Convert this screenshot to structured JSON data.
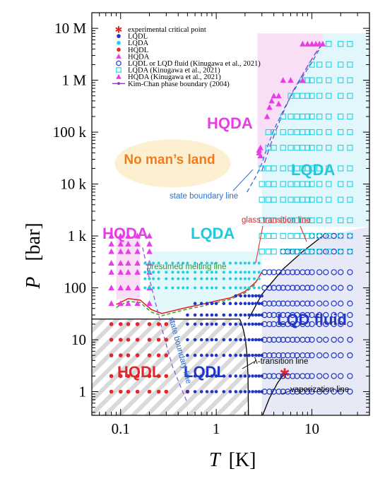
{
  "chart_data": {
    "type": "scatter",
    "xlabel": "T",
    "xunit": "[K]",
    "ylabel": "P",
    "yunit": "[bar]",
    "xscale": "log",
    "yscale": "log",
    "xlim": [
      0.05,
      40
    ],
    "ylim": [
      0.35,
      20000000
    ],
    "xticks": [
      0.1,
      1,
      10
    ],
    "xtick_labels": [
      "0.1",
      "1",
      "10"
    ],
    "yticks": [
      1,
      10,
      100,
      1000,
      10000,
      100000,
      1000000,
      10000000
    ],
    "ytick_labels": [
      "1",
      "10",
      "100",
      "1 k",
      "10 k",
      "100 k",
      "1 M",
      "10 M"
    ],
    "legend_position": "top-left",
    "legend": [
      {
        "label": "experimental critical point",
        "marker": "asterisk",
        "color": "#e3262a"
      },
      {
        "label": "LQDL",
        "marker": "dot",
        "color": "#1f35c8"
      },
      {
        "label": "LQDA",
        "marker": "dot",
        "color": "#22d0e0"
      },
      {
        "label": "HQDL",
        "marker": "dot",
        "color": "#e3262a"
      },
      {
        "label": "HQDA",
        "marker": "triangle",
        "color": "#e83de6"
      },
      {
        "label": "LQDL or LQD fluid (Kinugawa et al., 2021)",
        "marker": "open-circle",
        "color": "#1f35c8"
      },
      {
        "label": "LQDA (Kinugawa et al., 2021)",
        "marker": "open-square",
        "color": "#22d0e0"
      },
      {
        "label": "HQDA (Kinugawa et al., 2021)",
        "marker": "triangle",
        "color": "#e83de6"
      },
      {
        "label": "Kim-Chan phase boundary (2004)",
        "marker": "line-dot",
        "color": "#8b3db8"
      }
    ],
    "region_labels": {
      "no_mans_land": "No man’s land",
      "hqda_top": "HQDA",
      "lqda_top": "LQDA",
      "hqda_low": "HQDA",
      "lqda_low": "LQDA",
      "lqd_fluid": "LQD fluid",
      "hqdl": "HQDL",
      "lqdl": "LQDL"
    },
    "annotations": {
      "state_boundary_top": "state boundary line",
      "state_boundary_low": "state boundary line",
      "glass_transition": "glass transition line",
      "melting": "presumed melting line",
      "lambda": "λ-transition line",
      "vaporization": "vaporization line"
    },
    "critical_point": {
      "T": 5.2,
      "P": 2.27
    },
    "kim_chan_boundary": {
      "T": [
        3.0,
        3.6,
        4.3,
        5.2,
        6.3,
        7.6,
        9.2,
        11.0,
        13.0
      ],
      "P": [
        18000,
        50000,
        120000,
        280000,
        600000,
        1100000,
        2000000,
        3400000,
        5200000
      ]
    },
    "state_boundary_line_high": {
      "T": [
        2.1,
        2.6,
        3.0,
        3.4,
        4.0,
        5.2,
        7.0,
        10.0,
        13.0
      ],
      "P": [
        7000,
        14000,
        25000,
        50000,
        110000,
        300000,
        800000,
        2200000,
        5200000
      ]
    },
    "state_boundary_line_low": {
      "T": [
        0.17,
        0.2,
        0.24,
        0.29,
        0.35,
        0.42,
        0.5
      ],
      "P": [
        600,
        150,
        40,
        10,
        3,
        1.3,
        0.6
      ]
    },
    "glass_transition_line": {
      "T": [
        0.09,
        0.12,
        0.16,
        0.21,
        0.27,
        0.35,
        0.5,
        0.7,
        1.0,
        1.4,
        2.0,
        2.6,
        3.0
      ],
      "P": [
        48,
        62,
        58,
        38,
        32,
        36,
        42,
        48,
        56,
        64,
        85,
        130,
        200
      ]
    },
    "presumed_melting_line": {
      "T": [
        0.09,
        0.12,
        0.16,
        0.21,
        0.27,
        0.35,
        0.5,
        0.7,
        1.0,
        1.4,
        2.0,
        2.6
      ],
      "P": [
        42,
        55,
        52,
        34,
        29,
        33,
        39,
        44,
        52,
        60,
        80,
        120
      ]
    },
    "lambda_transition_line": {
      "T": [
        2.17,
        2.15,
        2.1,
        2.02,
        1.93,
        1.85,
        1.76
      ],
      "P": [
        0.35,
        2,
        5,
        10,
        15,
        20,
        25
      ]
    },
    "lqd_fluid_boundary": {
      "T": [
        2.17,
        3.0,
        5.0,
        8.0,
        13.0
      ],
      "P": [
        25,
        75,
        230,
        500,
        1000
      ]
    },
    "vaporization_line": {
      "T": [
        3.05,
        3.6,
        4.4,
        5.2
      ],
      "P": [
        0.35,
        0.75,
        1.5,
        2.27
      ]
    },
    "series": [
      {
        "name": "HQDL",
        "marker": "dot",
        "color": "#e3262a",
        "T": [
          0.08,
          0.1,
          0.12,
          0.15,
          0.2,
          0.25,
          0.3,
          0.5
        ],
        "P": [
          1,
          2,
          5,
          10,
          20
        ]
      },
      {
        "name": "HQDA",
        "marker": "triangle",
        "color": "#e83de6",
        "T": [
          0.08,
          0.1,
          0.12,
          0.15,
          0.2
        ],
        "P": [
          50,
          100,
          200,
          300,
          500,
          700,
          1000
        ]
      },
      {
        "name": "LQDL",
        "marker": "dot",
        "color": "#1f35c8",
        "T": [
          0.5,
          0.6,
          0.7,
          0.8,
          0.9,
          1.0,
          1.2,
          1.4,
          1.6,
          1.8,
          2.0,
          2.2,
          2.4,
          2.6,
          2.8,
          3.0
        ],
        "P": [
          1,
          2,
          5,
          10,
          20,
          30,
          50,
          70,
          100
        ]
      },
      {
        "name": "LQDA",
        "marker": "dot",
        "color": "#22d0e0",
        "T": [
          0.18,
          0.2,
          0.22,
          0.25,
          0.3,
          0.35,
          0.4,
          0.45,
          0.5,
          0.6,
          0.7,
          0.8,
          0.9,
          1.0,
          1.2,
          1.4,
          1.6,
          1.8,
          2.0,
          2.2,
          2.5,
          2.8
        ],
        "P": [
          100,
          150,
          200,
          300
        ]
      },
      {
        "name": "LQDL or LQD fluid (Kinugawa et al., 2021)",
        "marker": "open-circle",
        "color": "#1f35c8",
        "T": [
          3.2,
          3.6,
          4.0,
          4.5,
          5.0,
          5.6,
          6.3,
          7.0,
          8.0,
          9.0,
          10.0,
          12.0,
          14.0,
          17.0,
          20.0,
          25.0
        ],
        "P": [
          1,
          2,
          5,
          10,
          20,
          30,
          50,
          100,
          200,
          500,
          1000
        ]
      },
      {
        "name": "LQDA (Kinugawa et al., 2021)",
        "marker": "open-square",
        "color": "#22d0e0",
        "T": [
          3.0,
          3.5,
          4.0,
          5.0,
          6.0,
          7.0,
          8.0,
          9.0,
          10.0,
          12.0,
          15.0,
          20.0,
          25.0
        ],
        "P": [
          500,
          1000,
          2000,
          5000,
          10000,
          20000,
          50000,
          100000,
          200000,
          500000,
          1000000,
          2000000,
          5000000
        ]
      },
      {
        "name": "HQDA (Kinugawa et al., 2021)",
        "marker": "triangle",
        "color": "#e83de6",
        "T": [
          2.8,
          3.4,
          4.0,
          5.0,
          6.0,
          8.0,
          10.0,
          12.0
        ],
        "P": [
          40000,
          60000,
          150000,
          300000,
          500000,
          1000000,
          5000000
        ]
      }
    ]
  }
}
